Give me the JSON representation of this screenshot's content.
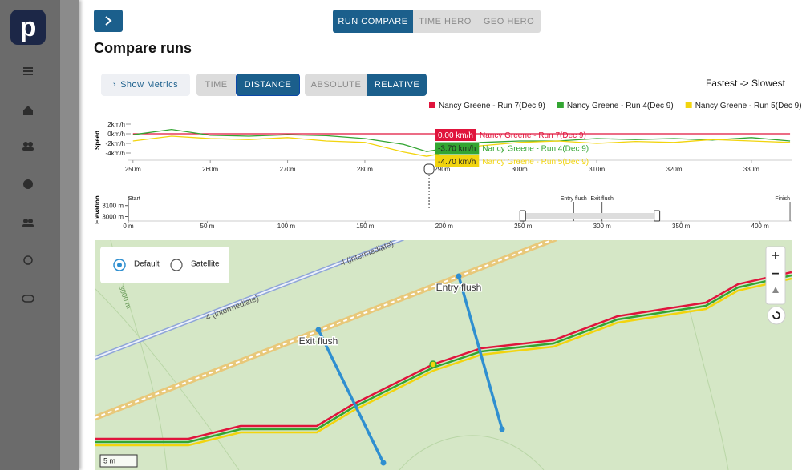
{
  "sidebar": {
    "logo": "p"
  },
  "header": {
    "tabs": [
      "RUN COMPARE",
      "TIME HERO",
      "GEO HERO"
    ],
    "title": "Compare runs"
  },
  "toolbar": {
    "show_metrics": "Show Metrics",
    "axis_modes": [
      "TIME",
      "DISTANCE"
    ],
    "value_modes": [
      "ABSOLUTE",
      "RELATIVE"
    ],
    "sort_order": "Fastest -> Slowest"
  },
  "chart_data": [
    {
      "type": "line",
      "y_label": "Speed",
      "x": [
        250,
        255,
        260,
        265,
        270,
        275,
        280,
        285,
        288,
        295,
        300,
        305,
        310,
        315,
        320,
        325,
        330,
        335
      ],
      "xlim": [
        249.4,
        335.2
      ],
      "xticks": [
        {
          "value": 250,
          "label": "250m"
        },
        {
          "value": 260,
          "label": "260m"
        },
        {
          "value": 270,
          "label": "270m"
        },
        {
          "value": 280,
          "label": "280m"
        },
        {
          "value": 290,
          "label": "290m"
        },
        {
          "value": 300,
          "label": "300m"
        },
        {
          "value": 310,
          "label": "310m"
        },
        {
          "value": 320,
          "label": "320m"
        },
        {
          "value": 330,
          "label": "330m"
        }
      ],
      "ylim": [
        -5.5,
        3
      ],
      "yticks": [
        {
          "value": 2,
          "label": "2km/h"
        },
        {
          "value": 0,
          "label": "0km/h"
        },
        {
          "value": -2,
          "label": "-2km/h"
        },
        {
          "value": -4,
          "label": "-4km/h"
        }
      ],
      "grid": false,
      "legend": "top-right",
      "series": [
        {
          "name": "Nancy Greene - Run 7(Dec 9)",
          "color": "#e0143c",
          "values": [
            0,
            0,
            0,
            0,
            0,
            0,
            0,
            0,
            0,
            0,
            0,
            0,
            0,
            0,
            0,
            0,
            0,
            0
          ]
        },
        {
          "name": "Nancy Greene - Run 4(Dec 9)",
          "color": "#33a532",
          "values": [
            -0.2,
            0.9,
            -0.3,
            -0.5,
            -0.2,
            -0.4,
            -1.0,
            -2.2,
            -3.7,
            -1.8,
            -1.5,
            -1.5,
            -1.0,
            -1.2,
            -1.0,
            -1.3,
            -0.8,
            -1.5
          ]
        },
        {
          "name": "Nancy Greene - Run 5(Dec 9)",
          "color": "#f2d40e",
          "values": [
            -1.5,
            -0.5,
            -1.0,
            -1.2,
            -0.8,
            -1.5,
            -1.8,
            -3.8,
            -4.7,
            -2.5,
            -1.8,
            -1.5,
            -2.0,
            -1.6,
            -1.8,
            -1.2,
            -1.5,
            -1.8
          ]
        }
      ],
      "tooltip": {
        "x": 288,
        "value_labels": [
          "0.00 km/h",
          "-3.70 km/h",
          "-4.70 km/h"
        ]
      }
    },
    {
      "type": "elevation",
      "y_label": "Elevation",
      "xlim": [
        0,
        420
      ],
      "xticks": [
        {
          "value": 0,
          "label": "0 m"
        },
        {
          "value": 50,
          "label": "50 m"
        },
        {
          "value": 100,
          "label": "100 m"
        },
        {
          "value": 150,
          "label": "150 m"
        },
        {
          "value": 200,
          "label": "200 m"
        },
        {
          "value": 250,
          "label": "250 m"
        },
        {
          "value": 300,
          "label": "300 m"
        },
        {
          "value": 350,
          "label": "350 m"
        },
        {
          "value": 400,
          "label": "400 m"
        }
      ],
      "ylim": [
        2960,
        3185
      ],
      "yticks": [
        {
          "value": 3100,
          "label": "3100 m"
        },
        {
          "value": 3000,
          "label": "3000 m"
        }
      ],
      "markers": [
        {
          "x": 0,
          "label": "Start"
        },
        {
          "x": 282,
          "label": "Entry flush"
        },
        {
          "x": 300,
          "label": "Exit flush"
        },
        {
          "x": 419,
          "label": "Finish"
        }
      ],
      "brush": [
        250,
        335
      ]
    }
  ],
  "map": {
    "layers": [
      "Default",
      "Satellite"
    ],
    "trail_labels": [
      "4 (intermediate)",
      "4 (intermediate)"
    ],
    "contour_label": "3000 m",
    "features": [
      "Exit flush",
      "Entry flush"
    ],
    "zoom": [
      "+",
      "−"
    ],
    "scale": "5 m"
  }
}
